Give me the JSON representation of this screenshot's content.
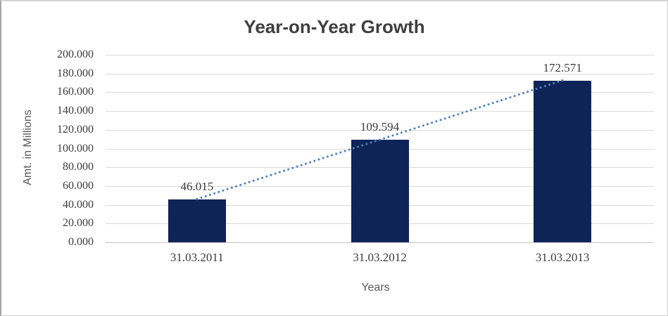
{
  "chart_data": {
    "type": "bar",
    "title": "Year-on-Year Growth",
    "xlabel": "Years",
    "ylabel": "Amt. in Millions",
    "categories": [
      "31.03.2011",
      "31.03.2012",
      "31.03.2013"
    ],
    "values": [
      46.015,
      109.594,
      172.571
    ],
    "data_labels": [
      "46.015",
      "109.594",
      "172.571"
    ],
    "ylim": [
      0,
      200
    ],
    "ytick_step": 20,
    "ytick_decimals": 3,
    "grid": true,
    "legend": "none",
    "colors": {
      "bar": "#0e2357",
      "trendline": "#4f81bd",
      "gridline": "#d9d9d9",
      "axis_line": "#c2c2c2",
      "tick_text": "#3b3b3b",
      "title_text": "#3f3f3f",
      "axis_title_text": "#595959"
    },
    "trendline": {
      "type": "linear",
      "style": "dotted"
    }
  }
}
